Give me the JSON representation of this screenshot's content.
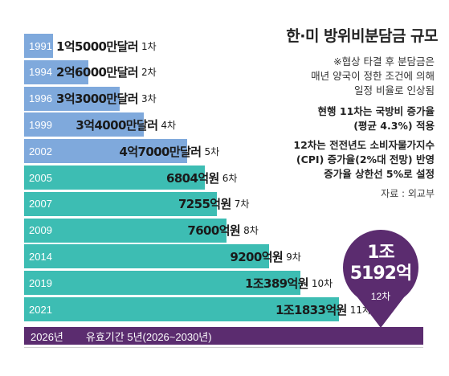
{
  "title": "한·미 방위비분담금 규모",
  "notes": {
    "line1": "※협상 타결 후 분담금은",
    "line2": "매년 양국이 정한 조건에 의해",
    "line3": "일정 비율로 인상됨",
    "rule1_line1": "현행 11차는 국방비 증가율",
    "rule1_line2": "(평균 4.3%) 적용",
    "rule2_line1": "12차는 전전년도 소비자물가지수",
    "rule2_line2": "(CPI) 증가율(2%대 전망) 반영",
    "rule2_line3": "증가율 상한선 5%로 설정",
    "source": "자료 : 외교부"
  },
  "colors": {
    "early_bar": "#7fa9dc",
    "teal_bar": "#3dbdb3",
    "pin": "#5b2c6f",
    "text_dark": "#1a1a1a"
  },
  "chart_data": {
    "type": "bar",
    "orientation": "horizontal",
    "unit": "억원",
    "categories": [
      "1991",
      "1994",
      "1996",
      "1999",
      "2002",
      "2005",
      "2007",
      "2009",
      "2014",
      "2019",
      "2021"
    ],
    "values": [
      1073,
      2400,
      3600,
      4500,
      6132,
      6804,
      7255,
      7600,
      9200,
      10389,
      11833
    ],
    "value_labels": [
      "1억5000만달러",
      "2억6000만달러",
      "3억3000만달러",
      "3억4000만달러",
      "4억7000만달러",
      "6804억원",
      "7255억원",
      "7600억원",
      "9200억원",
      "1조389억원",
      "1조1833억원"
    ],
    "rounds": [
      "1차",
      "2차",
      "3차",
      "4차",
      "5차",
      "6차",
      "7차",
      "8차",
      "9차",
      "10차",
      "11차"
    ],
    "xlim": [
      0,
      15000
    ],
    "highlight": {
      "year": "2026년",
      "value": 15192,
      "value_line1": "1조",
      "value_line2": "5192억",
      "round": "12차",
      "period_text": "유효기간 5년(2026~2030년)"
    }
  }
}
